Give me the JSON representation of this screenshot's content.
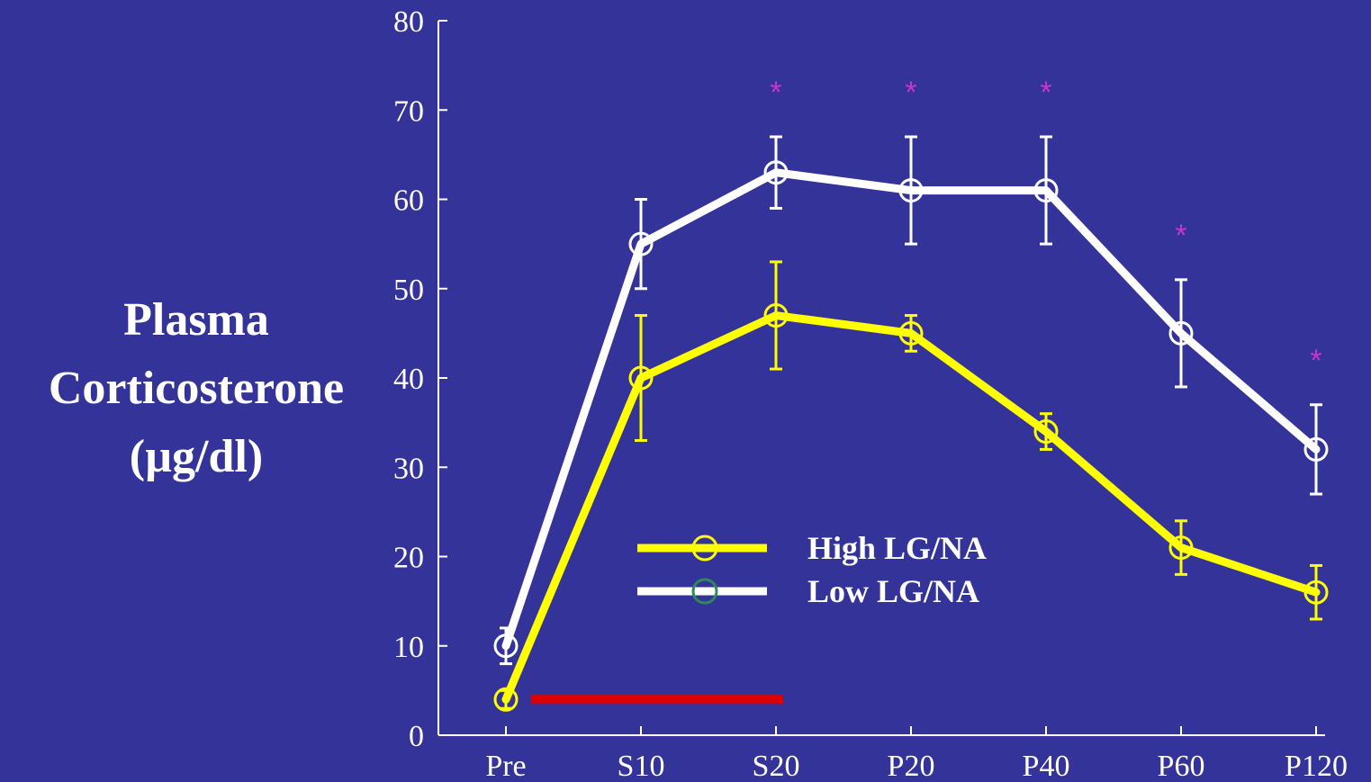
{
  "colors": {
    "background": "#333399",
    "axis": "#ffffff",
    "high_series": "#ffff00",
    "low_series": "#ffffff",
    "low_legend_marker": "#2e8b57",
    "significance": "#cc33cc",
    "stress_bar": "#dd0000"
  },
  "chart_data": {
    "type": "line",
    "title": "",
    "xlabel": "",
    "ylabel_lines": [
      "Plasma",
      "Corticosterone",
      "(µg/dl)"
    ],
    "categories": [
      "Pre",
      "S10",
      "S20",
      "P20",
      "P40",
      "P60",
      "P120"
    ],
    "ylim": [
      0,
      80
    ],
    "yticks": [
      0,
      10,
      20,
      30,
      40,
      50,
      60,
      70,
      80
    ],
    "grid": false,
    "legend_position": "center",
    "series": [
      {
        "name": "High LG/NA",
        "key": "high",
        "values": [
          4,
          40,
          47,
          45,
          34,
          21,
          16
        ],
        "error": [
          1,
          7,
          6,
          2,
          2,
          3,
          3
        ]
      },
      {
        "name": "Low LG/NA",
        "key": "low",
        "values": [
          10,
          55,
          63,
          61,
          61,
          45,
          32
        ],
        "error": [
          2,
          5,
          4,
          6,
          6,
          6,
          5
        ]
      }
    ],
    "significance_marker": "*",
    "significance_categories": [
      "S20",
      "P20",
      "P40",
      "P60",
      "P120"
    ],
    "stress_period": {
      "from": "Pre",
      "to": "S20",
      "y": 4
    }
  }
}
